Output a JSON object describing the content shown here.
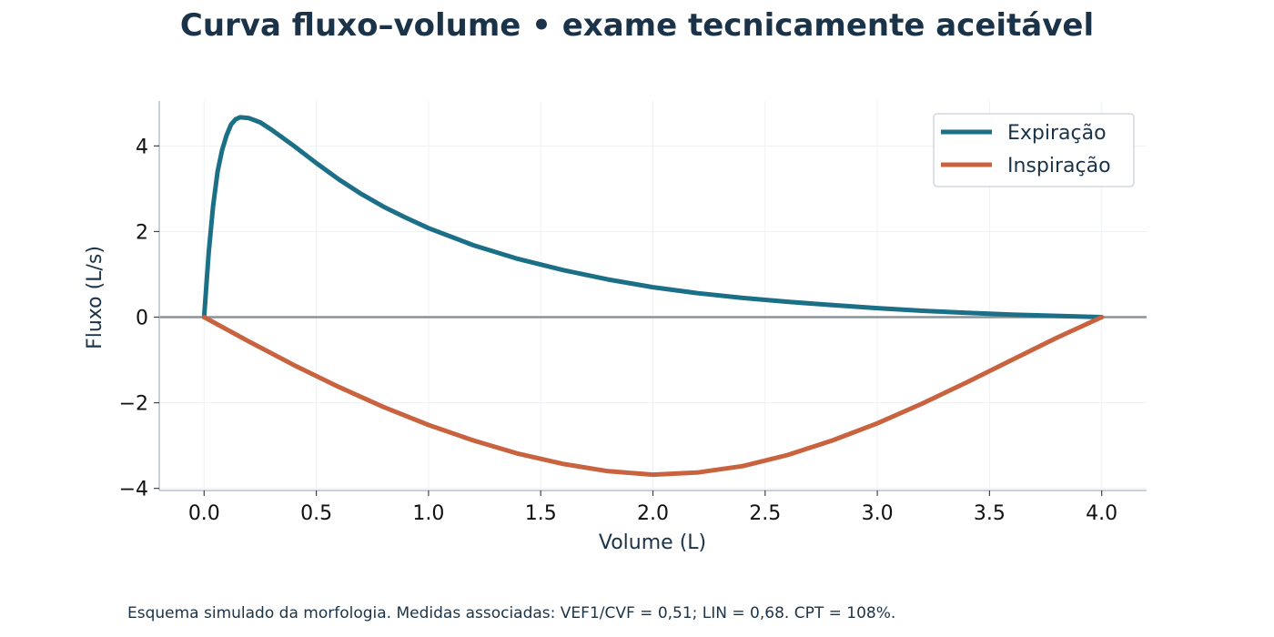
{
  "chart_data": {
    "type": "line",
    "title": "Curva fluxo–volume • exame tecnicamente aceitável",
    "xlabel": "Volume (L)",
    "ylabel": "Fluxo (L/s)",
    "xlim": [
      -0.2,
      4.2
    ],
    "ylim": [
      -4.05,
      5.05
    ],
    "x_ticks": [
      0.0,
      0.5,
      1.0,
      1.5,
      2.0,
      2.5,
      3.0,
      3.5,
      4.0
    ],
    "x_tick_labels": [
      "0.0",
      "0.5",
      "1.0",
      "1.5",
      "2.0",
      "2.5",
      "3.0",
      "3.5",
      "4.0"
    ],
    "y_ticks": [
      -4,
      -2,
      0,
      2,
      4
    ],
    "y_tick_labels": [
      "−4",
      "−2",
      "0",
      "2",
      "4"
    ],
    "grid": true,
    "legend_position": "top-right",
    "series": [
      {
        "name": "Expiração",
        "color": "#1b6f87",
        "points": [
          [
            0.0,
            0.0
          ],
          [
            0.02,
            1.5
          ],
          [
            0.04,
            2.6
          ],
          [
            0.06,
            3.4
          ],
          [
            0.08,
            3.9
          ],
          [
            0.1,
            4.25
          ],
          [
            0.12,
            4.5
          ],
          [
            0.14,
            4.62
          ],
          [
            0.16,
            4.67
          ],
          [
            0.2,
            4.65
          ],
          [
            0.25,
            4.55
          ],
          [
            0.3,
            4.38
          ],
          [
            0.4,
            4.0
          ],
          [
            0.5,
            3.6
          ],
          [
            0.6,
            3.22
          ],
          [
            0.7,
            2.88
          ],
          [
            0.8,
            2.58
          ],
          [
            0.9,
            2.32
          ],
          [
            1.0,
            2.08
          ],
          [
            1.2,
            1.68
          ],
          [
            1.4,
            1.36
          ],
          [
            1.6,
            1.1
          ],
          [
            1.8,
            0.88
          ],
          [
            2.0,
            0.7
          ],
          [
            2.2,
            0.56
          ],
          [
            2.4,
            0.45
          ],
          [
            2.6,
            0.36
          ],
          [
            2.8,
            0.28
          ],
          [
            3.0,
            0.21
          ],
          [
            3.2,
            0.15
          ],
          [
            3.4,
            0.1
          ],
          [
            3.6,
            0.06
          ],
          [
            3.8,
            0.03
          ],
          [
            4.0,
            0.0
          ]
        ]
      },
      {
        "name": "Inspiração",
        "color": "#c8623f",
        "points": [
          [
            0.0,
            0.0
          ],
          [
            0.2,
            -0.57
          ],
          [
            0.4,
            -1.12
          ],
          [
            0.6,
            -1.63
          ],
          [
            0.8,
            -2.1
          ],
          [
            1.0,
            -2.52
          ],
          [
            1.2,
            -2.88
          ],
          [
            1.4,
            -3.19
          ],
          [
            1.6,
            -3.43
          ],
          [
            1.8,
            -3.6
          ],
          [
            2.0,
            -3.68
          ],
          [
            2.2,
            -3.63
          ],
          [
            2.4,
            -3.48
          ],
          [
            2.6,
            -3.22
          ],
          [
            2.8,
            -2.88
          ],
          [
            3.0,
            -2.48
          ],
          [
            3.2,
            -2.02
          ],
          [
            3.4,
            -1.52
          ],
          [
            3.6,
            -1.0
          ],
          [
            3.8,
            -0.48
          ],
          [
            4.0,
            0.0
          ]
        ]
      }
    ]
  },
  "footnote": "Esquema simulado da morfologia. Medidas associadas: VEF1/CVF = 0,51; LIN = 0,68. CPT = 108%."
}
